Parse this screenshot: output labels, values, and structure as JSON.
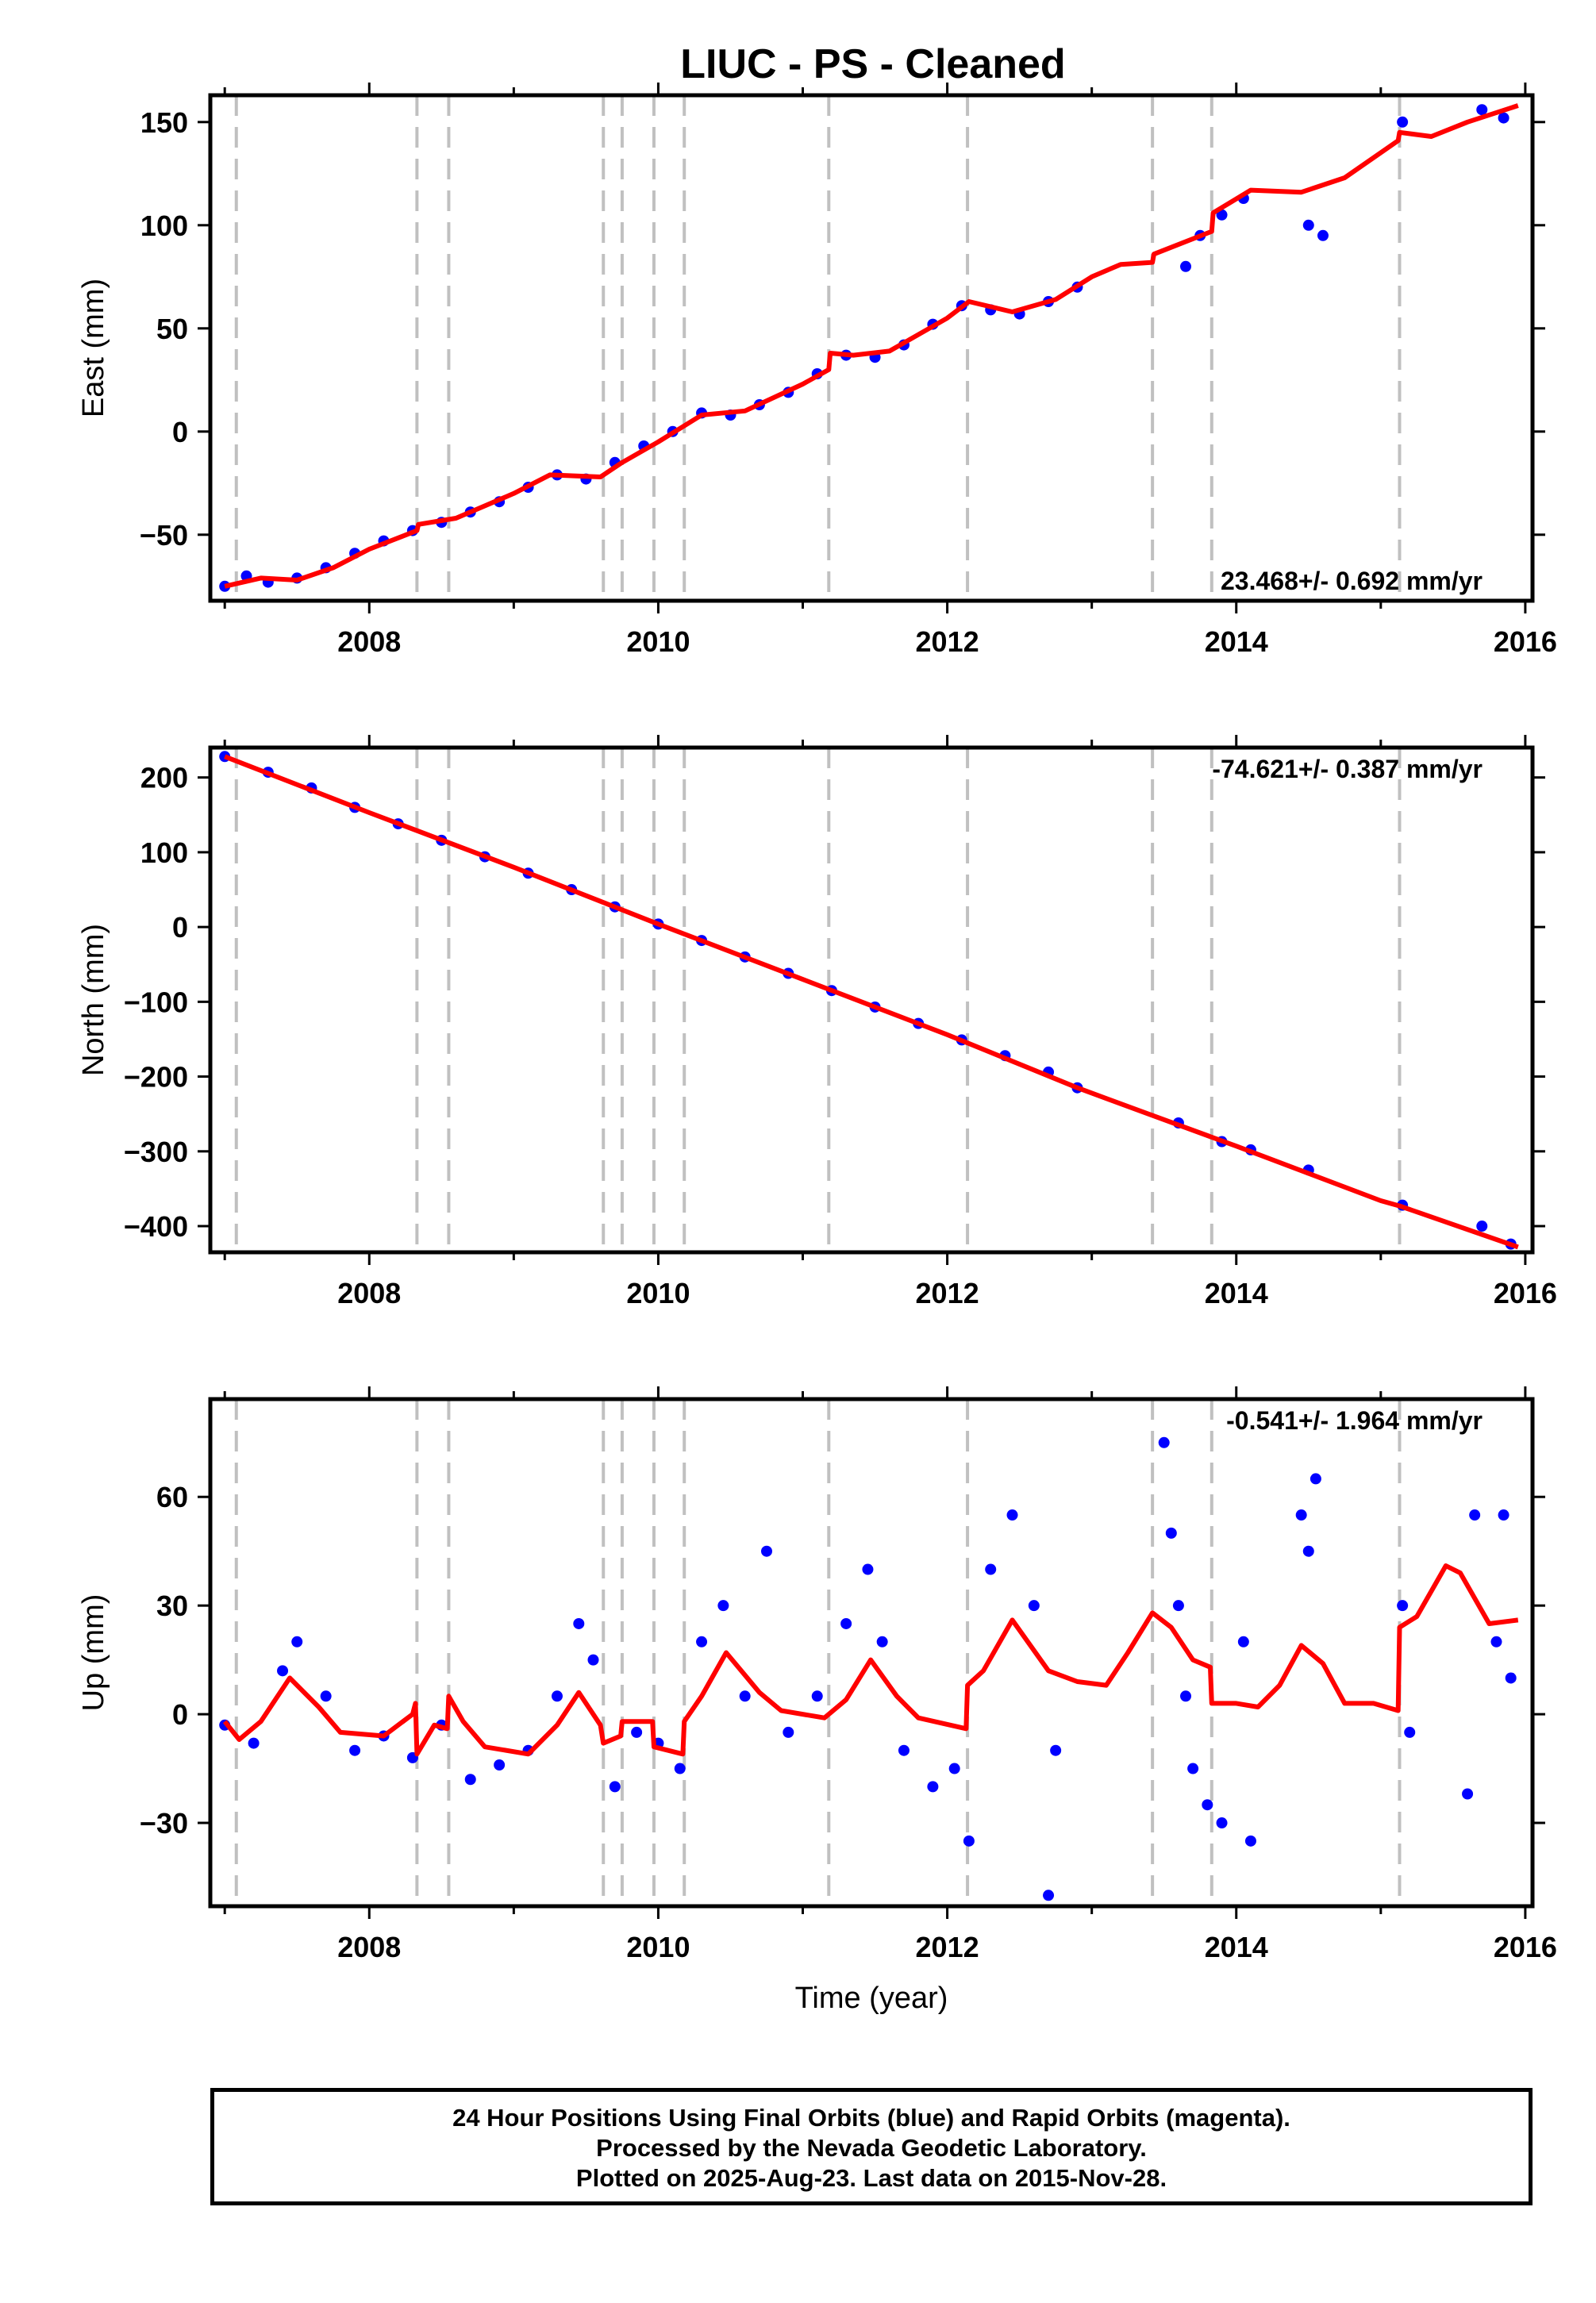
{
  "title": "LIUC  - PS - Cleaned",
  "footer": {
    "line1": "24 Hour Positions Using Final Orbits (blue) and Rapid Orbits (magenta).",
    "line2": "Processed by the Nevada Geodetic Laboratory.",
    "line3": "Plotted on 2025-Aug-23. Last data on 2015-Nov-28."
  },
  "colors": {
    "data": "#0000ff",
    "model": "#ff0000",
    "breaks": "#c0c0c0",
    "axes": "#000000"
  },
  "chart_data": [
    {
      "type": "scatter",
      "name": "east",
      "ylabel": "East (mm)",
      "xlabel": "",
      "xlim": [
        2006.9,
        2016.05
      ],
      "ylim": [
        -82,
        163
      ],
      "yticks": [
        -50,
        0,
        50,
        100,
        150
      ],
      "xticks": [
        2008,
        2010,
        2012,
        2014,
        2016
      ],
      "rate_label": "23.468+/- 0.692 mm/yr",
      "rate_position": "bottom-right",
      "breaks": [
        2007.08,
        2008.33,
        2008.55,
        2009.62,
        2009.75,
        2009.97,
        2010.18,
        2011.18,
        2012.14,
        2013.42,
        2013.83,
        2015.13
      ],
      "model": [
        [
          2007.0,
          -75
        ],
        [
          2007.25,
          -71
        ],
        [
          2007.5,
          -72
        ],
        [
          2007.75,
          -66
        ],
        [
          2008.0,
          -57
        ],
        [
          2008.33,
          -48
        ],
        [
          2008.34,
          -45
        ],
        [
          2008.6,
          -42
        ],
        [
          2009.0,
          -30
        ],
        [
          2009.25,
          -21
        ],
        [
          2009.6,
          -22
        ],
        [
          2009.75,
          -15
        ],
        [
          2010.0,
          -5
        ],
        [
          2010.3,
          8
        ],
        [
          2010.6,
          10
        ],
        [
          2011.0,
          23
        ],
        [
          2011.18,
          30
        ],
        [
          2011.19,
          38
        ],
        [
          2011.35,
          37
        ],
        [
          2011.6,
          39
        ],
        [
          2012.0,
          55
        ],
        [
          2012.15,
          63
        ],
        [
          2012.45,
          58
        ],
        [
          2012.75,
          64
        ],
        [
          2013.0,
          75
        ],
        [
          2013.2,
          81
        ],
        [
          2013.42,
          82
        ],
        [
          2013.43,
          86
        ],
        [
          2013.83,
          97
        ],
        [
          2013.84,
          106
        ],
        [
          2014.1,
          117
        ],
        [
          2014.45,
          116
        ],
        [
          2014.75,
          123
        ],
        [
          2015.12,
          141
        ],
        [
          2015.13,
          145
        ],
        [
          2015.35,
          143
        ],
        [
          2015.6,
          150
        ],
        [
          2015.95,
          158
        ]
      ],
      "points": [
        [
          2007.0,
          -75
        ],
        [
          2007.15,
          -70
        ],
        [
          2007.3,
          -73
        ],
        [
          2007.5,
          -71
        ],
        [
          2007.7,
          -66
        ],
        [
          2007.9,
          -59
        ],
        [
          2008.1,
          -53
        ],
        [
          2008.3,
          -48
        ],
        [
          2008.5,
          -44
        ],
        [
          2008.7,
          -39
        ],
        [
          2008.9,
          -34
        ],
        [
          2009.1,
          -27
        ],
        [
          2009.3,
          -21
        ],
        [
          2009.5,
          -23
        ],
        [
          2009.7,
          -15
        ],
        [
          2009.9,
          -7
        ],
        [
          2010.1,
          0
        ],
        [
          2010.3,
          9
        ],
        [
          2010.5,
          8
        ],
        [
          2010.7,
          13
        ],
        [
          2010.9,
          19
        ],
        [
          2011.1,
          28
        ],
        [
          2011.3,
          37
        ],
        [
          2011.5,
          36
        ],
        [
          2011.7,
          42
        ],
        [
          2011.9,
          52
        ],
        [
          2012.1,
          61
        ],
        [
          2012.3,
          59
        ],
        [
          2012.5,
          57
        ],
        [
          2012.7,
          63
        ],
        [
          2012.9,
          70
        ],
        [
          2013.65,
          80
        ],
        [
          2013.75,
          95
        ],
        [
          2013.9,
          105
        ],
        [
          2014.05,
          113
        ],
        [
          2014.5,
          100
        ],
        [
          2014.6,
          95
        ],
        [
          2015.15,
          150
        ],
        [
          2015.7,
          156
        ],
        [
          2015.85,
          152
        ]
      ]
    },
    {
      "type": "scatter",
      "name": "north",
      "ylabel": "North (mm)",
      "xlabel": "",
      "xlim": [
        2006.9,
        2016.05
      ],
      "ylim": [
        -435,
        240
      ],
      "yticks": [
        -400,
        -300,
        -200,
        -100,
        0,
        100,
        200
      ],
      "xticks": [
        2008,
        2010,
        2012,
        2014,
        2016
      ],
      "rate_label": "-74.621+/- 0.387 mm/yr",
      "rate_position": "top-right",
      "breaks": [
        2007.08,
        2008.33,
        2008.55,
        2009.62,
        2009.75,
        2009.97,
        2010.18,
        2011.18,
        2012.14,
        2013.42,
        2013.83,
        2015.13
      ],
      "model": [
        [
          2007.0,
          228
        ],
        [
          2008.0,
          153
        ],
        [
          2009.0,
          80
        ],
        [
          2010.0,
          4
        ],
        [
          2011.0,
          -70
        ],
        [
          2012.0,
          -144
        ],
        [
          2012.9,
          -215
        ],
        [
          2013.42,
          -252
        ],
        [
          2014.0,
          -293
        ],
        [
          2015.0,
          -366
        ],
        [
          2015.13,
          -373
        ],
        [
          2015.95,
          -428
        ]
      ],
      "points": [
        [
          2007.0,
          228
        ],
        [
          2007.3,
          207
        ],
        [
          2007.6,
          186
        ],
        [
          2007.9,
          160
        ],
        [
          2008.2,
          138
        ],
        [
          2008.5,
          116
        ],
        [
          2008.8,
          94
        ],
        [
          2009.1,
          72
        ],
        [
          2009.4,
          50
        ],
        [
          2009.7,
          27
        ],
        [
          2010.0,
          4
        ],
        [
          2010.3,
          -18
        ],
        [
          2010.6,
          -40
        ],
        [
          2010.9,
          -62
        ],
        [
          2011.2,
          -85
        ],
        [
          2011.5,
          -107
        ],
        [
          2011.8,
          -129
        ],
        [
          2012.1,
          -151
        ],
        [
          2012.4,
          -172
        ],
        [
          2012.7,
          -194
        ],
        [
          2012.9,
          -215
        ],
        [
          2013.6,
          -262
        ],
        [
          2013.9,
          -287
        ],
        [
          2014.1,
          -298
        ],
        [
          2014.5,
          -325
        ],
        [
          2015.15,
          -372
        ],
        [
          2015.7,
          -400
        ],
        [
          2015.9,
          -424
        ]
      ]
    },
    {
      "type": "scatter",
      "name": "up",
      "ylabel": "Up (mm)",
      "xlabel": "Time (year)",
      "xlim": [
        2006.9,
        2016.05
      ],
      "ylim": [
        -53,
        87
      ],
      "yticks": [
        -30,
        0,
        30,
        60
      ],
      "xticks": [
        2008,
        2010,
        2012,
        2014,
        2016
      ],
      "rate_label": "-0.541+/- 1.964 mm/yr",
      "rate_position": "top-right",
      "breaks": [
        2007.08,
        2008.33,
        2008.55,
        2009.62,
        2009.75,
        2009.97,
        2010.18,
        2011.18,
        2012.14,
        2013.42,
        2013.83,
        2015.13
      ],
      "model": [
        [
          2007.0,
          -2
        ],
        [
          2007.1,
          -7
        ],
        [
          2007.25,
          -2
        ],
        [
          2007.45,
          10
        ],
        [
          2007.65,
          2
        ],
        [
          2007.8,
          -5
        ],
        [
          2008.1,
          -6
        ],
        [
          2008.3,
          0
        ],
        [
          2008.32,
          3
        ],
        [
          2008.33,
          -11
        ],
        [
          2008.45,
          -3
        ],
        [
          2008.54,
          -4
        ],
        [
          2008.55,
          5
        ],
        [
          2008.65,
          -2
        ],
        [
          2008.8,
          -9
        ],
        [
          2009.1,
          -11
        ],
        [
          2009.3,
          -3
        ],
        [
          2009.45,
          6
        ],
        [
          2009.6,
          -3
        ],
        [
          2009.62,
          -8
        ],
        [
          2009.74,
          -6
        ],
        [
          2009.75,
          -2
        ],
        [
          2009.96,
          -2
        ],
        [
          2009.97,
          -9
        ],
        [
          2010.17,
          -11
        ],
        [
          2010.18,
          -2
        ],
        [
          2010.3,
          5
        ],
        [
          2010.47,
          17
        ],
        [
          2010.7,
          6
        ],
        [
          2010.85,
          1
        ],
        [
          2011.15,
          -1
        ],
        [
          2011.3,
          4
        ],
        [
          2011.47,
          15
        ],
        [
          2011.65,
          5
        ],
        [
          2011.8,
          -1
        ],
        [
          2012.13,
          -4
        ],
        [
          2012.14,
          8
        ],
        [
          2012.25,
          12
        ],
        [
          2012.45,
          26
        ],
        [
          2012.7,
          12
        ],
        [
          2012.9,
          9
        ],
        [
          2013.1,
          8
        ],
        [
          2013.25,
          17
        ],
        [
          2013.42,
          28
        ],
        [
          2013.55,
          24
        ],
        [
          2013.7,
          15
        ],
        [
          2013.82,
          13
        ],
        [
          2013.83,
          3
        ],
        [
          2014.0,
          3
        ],
        [
          2014.15,
          2
        ],
        [
          2014.3,
          8
        ],
        [
          2014.45,
          19
        ],
        [
          2014.6,
          14
        ],
        [
          2014.75,
          3
        ],
        [
          2014.95,
          3
        ],
        [
          2015.12,
          1
        ],
        [
          2015.13,
          24
        ],
        [
          2015.25,
          27
        ],
        [
          2015.45,
          41
        ],
        [
          2015.55,
          39
        ],
        [
          2015.75,
          25
        ],
        [
          2015.95,
          26
        ]
      ],
      "points": [
        [
          2007.0,
          -3
        ],
        [
          2007.2,
          -8
        ],
        [
          2007.4,
          12
        ],
        [
          2007.5,
          20
        ],
        [
          2007.7,
          5
        ],
        [
          2007.9,
          -10
        ],
        [
          2008.1,
          -6
        ],
        [
          2008.3,
          -12
        ],
        [
          2008.5,
          -3
        ],
        [
          2008.7,
          -18
        ],
        [
          2008.9,
          -14
        ],
        [
          2009.1,
          -10
        ],
        [
          2009.3,
          5
        ],
        [
          2009.45,
          25
        ],
        [
          2009.55,
          15
        ],
        [
          2009.7,
          -20
        ],
        [
          2009.85,
          -5
        ],
        [
          2010.0,
          -8
        ],
        [
          2010.15,
          -15
        ],
        [
          2010.3,
          20
        ],
        [
          2010.45,
          30
        ],
        [
          2010.6,
          5
        ],
        [
          2010.75,
          45
        ],
        [
          2010.9,
          -5
        ],
        [
          2011.1,
          5
        ],
        [
          2011.3,
          25
        ],
        [
          2011.45,
          40
        ],
        [
          2011.55,
          20
        ],
        [
          2011.7,
          -10
        ],
        [
          2011.9,
          -20
        ],
        [
          2012.05,
          -15
        ],
        [
          2012.15,
          -35
        ],
        [
          2012.3,
          40
        ],
        [
          2012.45,
          55
        ],
        [
          2012.6,
          30
        ],
        [
          2012.75,
          -10
        ],
        [
          2012.7,
          -50
        ],
        [
          2013.5,
          75
        ],
        [
          2013.55,
          50
        ],
        [
          2013.6,
          30
        ],
        [
          2013.65,
          5
        ],
        [
          2013.7,
          -15
        ],
        [
          2013.8,
          -25
        ],
        [
          2013.9,
          -30
        ],
        [
          2014.05,
          20
        ],
        [
          2014.1,
          -35
        ],
        [
          2014.45,
          55
        ],
        [
          2014.5,
          45
        ],
        [
          2014.55,
          65
        ],
        [
          2015.15,
          30
        ],
        [
          2015.2,
          -5
        ],
        [
          2015.6,
          -22
        ],
        [
          2015.65,
          55
        ],
        [
          2015.8,
          20
        ],
        [
          2015.85,
          55
        ],
        [
          2015.9,
          10
        ]
      ]
    }
  ]
}
